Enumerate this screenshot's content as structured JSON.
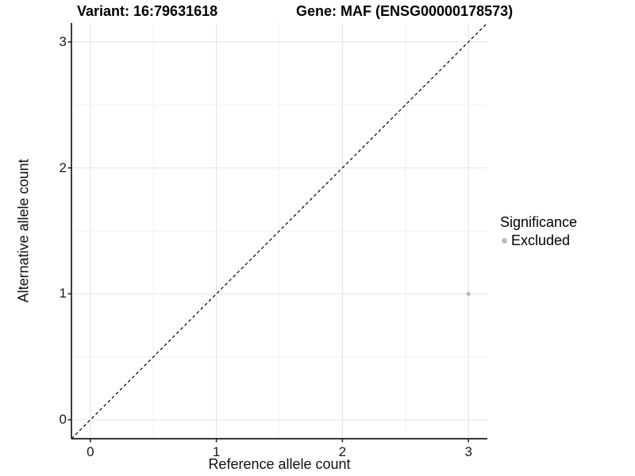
{
  "figure": {
    "title_left": "Variant: 16:79631618",
    "title_right": "Gene: MAF (ENSG00000178573)"
  },
  "chart_data": {
    "type": "scatter",
    "title": "Variant: 16:79631618   Gene: MAF (ENSG00000178573)",
    "xlabel": "Reference allele count",
    "ylabel": "Alternative allele count",
    "xlim": [
      -0.15,
      3.15
    ],
    "ylim": [
      -0.15,
      3.15
    ],
    "xticks": [
      0,
      1,
      2,
      3
    ],
    "yticks": [
      0,
      1,
      2,
      3
    ],
    "minor_ticks": [
      0.5,
      1.5,
      2.5
    ],
    "grid": true,
    "points": [
      {
        "x": 3,
        "y": 1,
        "series": "Excluded"
      }
    ],
    "reference_line": {
      "type": "identity",
      "style": "dashed",
      "color": "#000000"
    },
    "legend": {
      "title": "Significance",
      "position": "right",
      "entries": [
        {
          "label": "Excluded",
          "color": "#bcbcbc",
          "marker": "circle"
        }
      ]
    },
    "colors": {
      "point": "#b9b9b9",
      "grid_major": "#e6e6e6",
      "grid_minor": "#f2f2f2",
      "axis_line": "#1a1a1a",
      "background": "#ffffff"
    }
  }
}
